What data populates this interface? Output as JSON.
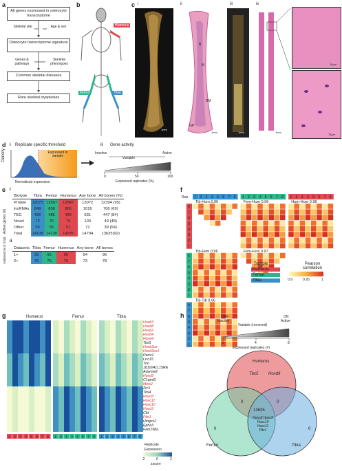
{
  "panel_a": {
    "label": "a",
    "box1": "All genes expressed in osteocyte transcriptome",
    "side_left": "Skeletal site",
    "side_right": "Age & sex",
    "box2": "Osteocyte transcriptome signature",
    "side_left2": "Genes & pathways",
    "side_right2": "Skeletal phenotypes",
    "box3": "Common skeletal diseases",
    "box4": "Rare skeletal dysplasias"
  },
  "panel_b": {
    "label": "b",
    "humerus": "Humerus",
    "femur": "Femur",
    "tibia": "Tibia"
  },
  "panel_c": {
    "label": "c",
    "sub_i": "i",
    "sub_ii": "ii",
    "sub_iii": "iii",
    "sub_iv": "iv",
    "labels_ii": [
      "B",
      "M",
      "BM",
      "GP"
    ],
    "scale_1mm": "1mm",
    "scale_10um": "10μm",
    "scale_75um": "75μm"
  },
  "panel_d": {
    "label": "d",
    "sub_i": "i",
    "title_i": "Replicate specific threshold",
    "ylabel": "Density",
    "xlabel": "Normalised expression",
    "annot": "Expressed in sample",
    "sub_ii": "ii",
    "title_ii": "Gene activity",
    "inactive": "Inactive",
    "variable": "Variable",
    "active": "Active",
    "ticks": [
      "0",
      "50",
      "100"
    ],
    "xlabel_ii": "Expressed replicates (%)"
  },
  "panel_e": {
    "label": "e",
    "sub_i": "i",
    "side_i": "Active genes (#)",
    "headers": [
      "Biotype",
      "Tibia",
      "Femur",
      "Humerus",
      "Any bone",
      "All bones (%)"
    ],
    "rows": [
      [
        "Protein",
        "12675",
        "12657",
        "12847",
        "13072",
        "12394 (95)"
      ],
      [
        "lncRNAs",
        "849",
        "858",
        "866",
        "1016",
        "706 (69)"
      ],
      [
        "TEC",
        "486",
        "485",
        "496",
        "531",
        "447 (84)"
      ],
      [
        "Novel",
        "72",
        "75",
        "75",
        "103",
        "49 (48)"
      ],
      [
        "Other",
        "56",
        "55",
        "51",
        "72",
        "39 (54)"
      ],
      [
        "Total",
        "14138",
        "14130",
        "14335",
        "14794",
        "13635(92)"
      ]
    ],
    "sub_ii": "ii",
    "side_ii": "Validated (% of Total)",
    "headers2": [
      "Datasets",
      "Tibia",
      "Femur",
      "Humerus",
      "Any bone",
      "All bones"
    ],
    "rows2": [
      [
        "1+",
        "95",
        "95",
        "95",
        "94",
        "96"
      ],
      [
        "2+",
        "75",
        "75",
        "75",
        "73",
        "78"
      ]
    ]
  },
  "panel_f": {
    "label": "f",
    "rep": "Rep",
    "top_reps_T": [
      "1",
      "2",
      "3",
      "4",
      "5",
      "6",
      "7",
      "8"
    ],
    "top_reps_F": [
      "1",
      "2",
      "3",
      "4",
      "5",
      "6",
      "7",
      "8"
    ],
    "top_reps_H": [
      "1",
      "2",
      "3",
      "4",
      "5",
      "6",
      "7",
      "8"
    ],
    "blocks": [
      {
        "name": "Tib-Hum",
        "value": "0.96"
      },
      {
        "name": "Fem-Hum",
        "value": "0.96"
      },
      {
        "name": "Hum-Hum",
        "value": "0.98"
      },
      {
        "name": "Tib-Fem",
        "value": "0.96"
      },
      {
        "name": "Fem-Fem",
        "value": "0.97"
      },
      {
        "name": "Tib-Tib",
        "value": "0.96"
      }
    ],
    "side_reps_H": [
      "8",
      "7",
      "6",
      "5",
      "4",
      "3",
      "2",
      "1"
    ],
    "side_reps_F": [
      "8",
      "7",
      "6",
      "5",
      "4",
      "3",
      "2",
      "1"
    ],
    "side_reps_T": [
      "8",
      "7",
      "6",
      "5",
      "4",
      "3",
      "2",
      "1"
    ],
    "legend_sample": "Sample",
    "legend_items": [
      "Humerus",
      "Femur",
      "Tibia"
    ],
    "legend_corr": "Pearson correlation",
    "corr_ticks": [
      "0.9",
      "0.95",
      "1"
    ],
    "colors": {
      "humerus": "#e0484f",
      "femur": "#2fb58a",
      "tibia": "#3a8fc8"
    }
  },
  "panel_g": {
    "label": "g",
    "groups": [
      "Humerus",
      "Femur",
      "Tibia"
    ],
    "genes": [
      {
        "name": "Hoxb3",
        "red": true
      },
      {
        "name": "Hoxd8",
        "red": true
      },
      {
        "name": "Hoxb2",
        "red": true
      },
      {
        "name": "Hoxb4",
        "red": true
      },
      {
        "name": "Hoxd4",
        "red": true
      },
      {
        "name": "Tbx5",
        "red": false
      },
      {
        "name": "Hoxb3os",
        "red": true
      },
      {
        "name": "Hoxd3os1",
        "red": true
      },
      {
        "name": "Pamr1",
        "red": false
      },
      {
        "name": "Lrrc15",
        "red": false
      },
      {
        "name": "Tnn",
        "red": false
      },
      {
        "name": "1810041L15Rik",
        "red": false
      },
      {
        "name": "Adamts8",
        "red": false
      },
      {
        "name": "Hoxd9",
        "red": true
      },
      {
        "name": "C1qtnf3",
        "red": false
      },
      {
        "name": "Meis2",
        "red": true
      },
      {
        "name": "Zic3",
        "red": false
      },
      {
        "name": "Tbx4",
        "red": false
      },
      {
        "name": "Hoxc8",
        "red": true
      },
      {
        "name": "Hoxc11",
        "red": true
      },
      {
        "name": "Hoxc10",
        "red": true
      },
      {
        "name": "Hoxc9",
        "red": true
      },
      {
        "name": "Cfd",
        "red": false
      },
      {
        "name": "Pitx1",
        "red": true
      },
      {
        "name": "Hmgcs2",
        "red": false
      },
      {
        "name": "Epha3",
        "red": false
      },
      {
        "name": "Fam198a",
        "red": false
      }
    ],
    "reps": [
      "1",
      "2",
      "3",
      "4",
      "5",
      "6",
      "7",
      "8"
    ],
    "replicate_label": "Replicate",
    "expression_label": "Expression",
    "zscore_label": "zscore",
    "scale_ticks": [
      "-2",
      "0",
      "2"
    ]
  },
  "panel_h": {
    "label": "h",
    "off": "OFF",
    "inactive": "Inactive",
    "on": "ON",
    "active": "Active",
    "variable": "Variable (removed)",
    "ticks": [
      "0",
      "4",
      "8"
    ],
    "xlabel": "Expressed replicates (#)",
    "humerus": "Humerus",
    "femur": "Femur",
    "tibia": "Tibia",
    "hum_only": [
      "Tbx5",
      "Hoxd9"
    ],
    "zeros": [
      "0",
      "0",
      "0",
      "0",
      "0",
      "0"
    ],
    "center": "13635",
    "fem_tib": [
      "Hoxc8",
      "Hoxc9",
      "Hoxc10",
      "Hoxc11",
      "Pitx1"
    ]
  }
}
